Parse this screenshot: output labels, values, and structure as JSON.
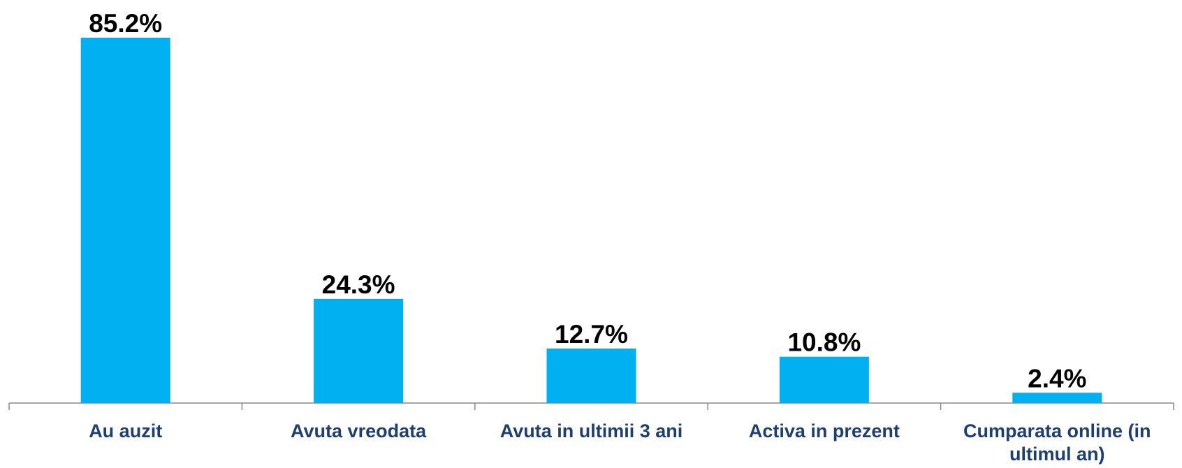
{
  "chart_data": {
    "type": "bar",
    "categories": [
      "Au auzit",
      "Avuta vreodata",
      "Avuta in ultimii 3 ani",
      "Activa in prezent",
      "Cumparata online (in ultimul an)"
    ],
    "values": [
      85.2,
      24.3,
      12.7,
      10.8,
      2.4
    ],
    "value_labels": [
      "85.2%",
      "24.3%",
      "12.7%",
      "10.8%",
      "2.4%"
    ],
    "color": "#00b0f0"
  }
}
